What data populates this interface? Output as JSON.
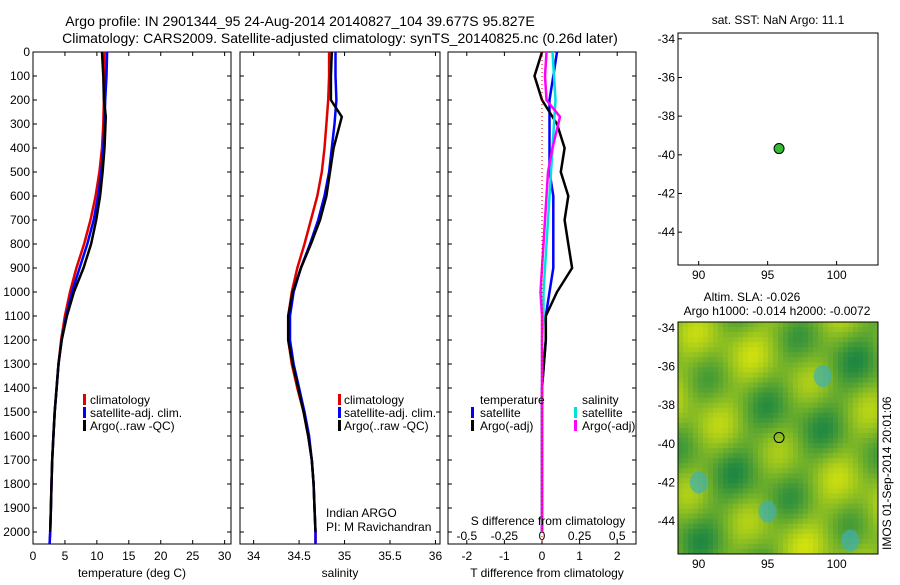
{
  "header": {
    "title_line1": "Argo profile: IN 2901344_95 24-Aug-2014 20140827_104 39.677S 95.827E",
    "title_line2": "Climatology: CARS2009. Satellite-adjusted climatology: synTS_20140825.nc (0.26d later)"
  },
  "colors": {
    "climatology": "#e00000",
    "satellite": "#0000ff",
    "argo": "#000000",
    "sat_salinity": "#00e0e0",
    "argo_adj_salinity": "#ff00ff",
    "map_point": "#33bb33"
  },
  "chart_data": [
    {
      "id": "temperature",
      "type": "line",
      "xlabel": "temperature (deg C)",
      "xlim": [
        0,
        31
      ],
      "xticks": [
        0,
        5,
        10,
        15,
        20,
        25,
        30
      ],
      "ylim": [
        0,
        2050
      ],
      "yticks": [
        0,
        100,
        200,
        300,
        400,
        500,
        600,
        700,
        800,
        900,
        1000,
        1100,
        1200,
        1300,
        1400,
        1500,
        1600,
        1700,
        1800,
        1900,
        2000
      ],
      "y_reversed": true,
      "legend": {
        "placement": "center-right",
        "entries": [
          "climatology",
          "satellite-adj. clim.",
          "Argo(..raw -QC)"
        ]
      },
      "series": [
        {
          "name": "climatology",
          "color": "#e00000",
          "x": [
            11.2,
            11.2,
            11.1,
            11.0,
            10.8,
            10.4,
            9.8,
            9.0,
            8.0,
            6.8,
            5.8,
            5.0,
            4.4,
            4.0,
            3.7,
            3.4,
            3.2,
            3.0,
            2.9,
            2.8,
            2.7,
            2.6
          ],
          "y": [
            0,
            100,
            200,
            300,
            400,
            500,
            600,
            700,
            800,
            900,
            1000,
            1100,
            1200,
            1300,
            1400,
            1500,
            1600,
            1700,
            1800,
            1900,
            2000,
            2050
          ]
        },
        {
          "name": "satellite-adj. clim.",
          "color": "#0000ff",
          "x": [
            11.6,
            11.5,
            11.3,
            11.2,
            11.0,
            10.7,
            10.2,
            9.5,
            8.5,
            7.3,
            6.1,
            5.2,
            4.5,
            4.0,
            3.7,
            3.4,
            3.2,
            3.0,
            2.9,
            2.8,
            2.7,
            2.6
          ],
          "y": [
            0,
            100,
            200,
            300,
            400,
            500,
            600,
            700,
            800,
            900,
            1000,
            1100,
            1200,
            1300,
            1400,
            1500,
            1600,
            1700,
            1800,
            1900,
            2000,
            2050
          ]
        },
        {
          "name": "Argo(..raw -QC)",
          "color": "#000000",
          "x": [
            10.8,
            11.0,
            11.1,
            11.4,
            11.2,
            10.9,
            10.5,
            9.9,
            9.1,
            7.9,
            6.4,
            5.3,
            4.5,
            4.0,
            3.7,
            3.4,
            3.2,
            3.0,
            2.9,
            2.8,
            2.7
          ],
          "y": [
            0,
            100,
            200,
            270,
            400,
            500,
            600,
            700,
            800,
            900,
            1000,
            1100,
            1200,
            1300,
            1400,
            1500,
            1600,
            1700,
            1800,
            1900,
            2000
          ]
        }
      ]
    },
    {
      "id": "salinity",
      "type": "line",
      "xlabel": "salinity",
      "xlim": [
        33.85,
        36.05
      ],
      "xticks": [
        34,
        34.5,
        35,
        35.5,
        36
      ],
      "ylim": [
        0,
        2050
      ],
      "y_reversed": true,
      "legend": {
        "placement": "center-right",
        "entries": [
          "climatology",
          "satellite-adj. clim.",
          "Argo(..raw -QC)"
        ]
      },
      "annotation": {
        "line1": "Indian ARGO",
        "line2": "PI: M Ravichandran"
      },
      "series": [
        {
          "name": "climatology",
          "color": "#e00000",
          "x": [
            34.83,
            34.83,
            34.82,
            34.8,
            34.78,
            34.75,
            34.7,
            34.63,
            34.56,
            34.48,
            34.42,
            34.38,
            34.38,
            34.42,
            34.48,
            34.55,
            34.6,
            34.64,
            34.66,
            34.67,
            34.68,
            34.68
          ],
          "y": [
            0,
            100,
            200,
            300,
            400,
            500,
            600,
            700,
            800,
            900,
            1000,
            1100,
            1200,
            1300,
            1400,
            1500,
            1600,
            1700,
            1800,
            1900,
            2000,
            2050
          ]
        },
        {
          "name": "satellite-adj. clim.",
          "color": "#0000ff",
          "x": [
            34.9,
            34.9,
            34.91,
            34.89,
            34.86,
            34.83,
            34.78,
            34.71,
            34.62,
            34.52,
            34.44,
            34.4,
            34.4,
            34.44,
            34.5,
            34.56,
            34.61,
            34.64,
            34.66,
            34.67,
            34.68,
            34.68
          ],
          "y": [
            0,
            100,
            200,
            300,
            400,
            500,
            600,
            700,
            800,
            900,
            1000,
            1100,
            1200,
            1300,
            1400,
            1500,
            1600,
            1700,
            1800,
            1900,
            2000,
            2050
          ]
        },
        {
          "name": "Argo(..raw -QC)",
          "color": "#000000",
          "x": [
            34.86,
            34.85,
            34.85,
            34.97,
            34.88,
            34.84,
            34.8,
            34.73,
            34.63,
            34.52,
            34.43,
            34.38,
            34.38,
            34.43,
            34.49,
            34.55,
            34.6,
            34.64,
            34.66,
            34.67,
            34.68
          ],
          "y": [
            0,
            100,
            200,
            270,
            400,
            500,
            600,
            700,
            800,
            900,
            1000,
            1100,
            1200,
            1300,
            1400,
            1500,
            1600,
            1700,
            1800,
            1900,
            2000
          ]
        }
      ]
    },
    {
      "id": "differences",
      "type": "line",
      "xlabel": "T difference from climatology",
      "xlabel_top": "S difference from climatology",
      "xlim": [
        -2.5,
        2.5
      ],
      "xticks": [
        -2,
        -1,
        0,
        1,
        2
      ],
      "xticks_top": [
        -0.5,
        -0.25,
        0,
        0.25,
        0.5
      ],
      "xtick_top_labels": [
        "-0.5",
        "-0.25",
        "0",
        "0.25",
        "0.5"
      ],
      "ylim": [
        0,
        2050
      ],
      "y_reversed": true,
      "legend": {
        "placement": "center",
        "temperature_heading": "temperature",
        "salinity_heading": "salinity",
        "temp_entries": [
          "satellite",
          "Argo(-adj)"
        ],
        "sal_entries": [
          "satellite",
          "Argo(-adj)"
        ]
      },
      "series": [
        {
          "name": "satellite",
          "quantity": "T",
          "color": "#0000ff",
          "x": [
            0.4,
            0.3,
            0.2,
            0.2,
            0.2,
            0.2,
            0.3,
            0.3,
            0.3,
            0.3,
            0.2,
            0.1,
            0.1,
            0.05,
            0,
            0,
            0,
            0,
            0,
            0,
            0
          ],
          "y": [
            0,
            100,
            200,
            300,
            400,
            500,
            600,
            700,
            800,
            900,
            1000,
            1100,
            1200,
            1300,
            1400,
            1500,
            1600,
            1700,
            1800,
            1900,
            2000
          ]
        },
        {
          "name": "Argo(-adj)",
          "quantity": "T",
          "color": "#000000",
          "x": [
            0,
            -0.2,
            0,
            0.4,
            0.6,
            0.5,
            0.7,
            0.6,
            0.7,
            0.8,
            0.4,
            0.1,
            0.1,
            0.05,
            0,
            0,
            0,
            0,
            0,
            0,
            0
          ],
          "y": [
            0,
            100,
            200,
            300,
            400,
            500,
            600,
            700,
            800,
            900,
            1000,
            1100,
            1200,
            1300,
            1400,
            1500,
            1600,
            1700,
            1800,
            1900,
            2000
          ]
        },
        {
          "name": "satellite",
          "quantity": "S",
          "color": "#00e0e0",
          "x": [
            0.07,
            0.08,
            0.09,
            0.08,
            0.07,
            0.06,
            0.05,
            0.04,
            0.03,
            0.02,
            0.01,
            0.01,
            0,
            0,
            0,
            0,
            0,
            0,
            0,
            0,
            0
          ],
          "y": [
            0,
            100,
            200,
            300,
            400,
            500,
            600,
            700,
            800,
            900,
            1000,
            1100,
            1200,
            1300,
            1400,
            1500,
            1600,
            1700,
            1800,
            1900,
            2000
          ]
        },
        {
          "name": "Argo(-adj)",
          "quantity": "S",
          "color": "#ff00ff",
          "x": [
            0.03,
            0.02,
            0.03,
            0.12,
            0.07,
            0.04,
            0.03,
            0.02,
            0.01,
            0.0,
            -0.01,
            0,
            0,
            0,
            0,
            0,
            0,
            0,
            0,
            0,
            0
          ],
          "y": [
            0,
            100,
            200,
            270,
            400,
            500,
            600,
            700,
            800,
            900,
            1000,
            1100,
            1200,
            1300,
            1400,
            1500,
            1600,
            1700,
            1800,
            1900,
            2000
          ]
        }
      ]
    },
    {
      "id": "sst_map",
      "type": "scatter",
      "title": "sat. SST: NaN Argo: 11.1",
      "xlim": [
        88.5,
        103
      ],
      "xticks": [
        90,
        95,
        100
      ],
      "ylim": [
        -45.7,
        -33.7
      ],
      "yticks": [
        -34,
        -36,
        -38,
        -40,
        -42,
        -44
      ],
      "point": {
        "lon": 95.827,
        "lat": -39.677
      }
    },
    {
      "id": "sla_map",
      "type": "heatmap",
      "title_line1": "Altim. SLA: -0.026",
      "title_line2": "Argo h1000: -0.014 h2000: -0.0072",
      "xlim": [
        88.5,
        103
      ],
      "xticks": [
        90,
        95,
        100
      ],
      "ylim": [
        -45.7,
        -33.7
      ],
      "yticks": [
        -34,
        -36,
        -38,
        -40,
        -42,
        -44
      ],
      "point": {
        "lon": 95.827,
        "lat": -39.677
      }
    }
  ],
  "footer": {
    "stamp": "IMOS 01-Sep-2014 20:01:06"
  }
}
